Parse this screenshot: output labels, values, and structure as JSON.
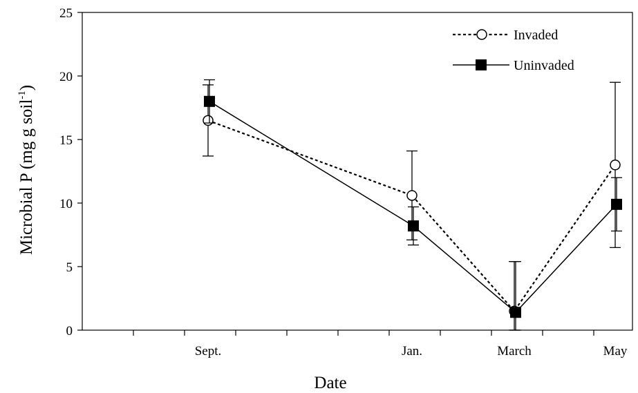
{
  "chart_data": {
    "type": "line",
    "title": "",
    "xlabel": "Date",
    "ylabel": "Microbial P (mg g soil",
    "ylabel_superscript": "-1",
    "ylabel_suffix": ")",
    "ylim": [
      0,
      25
    ],
    "yticks": [
      0,
      5,
      10,
      15,
      20,
      25
    ],
    "categories": [
      "Sept.",
      "Jan.",
      "March",
      "May"
    ],
    "grid": false,
    "legend_position": "top-right",
    "series": [
      {
        "name": "Invaded",
        "style": "dotted line, open circle",
        "values": [
          16.5,
          10.6,
          1.5,
          13.0
        ],
        "error": [
          2.8,
          3.5,
          3.9,
          6.5
        ]
      },
      {
        "name": "Uninvaded",
        "style": "solid line, filled square",
        "values": [
          18.0,
          8.2,
          1.4,
          9.9
        ],
        "error": [
          1.7,
          1.5,
          4.0,
          2.1
        ]
      }
    ]
  }
}
